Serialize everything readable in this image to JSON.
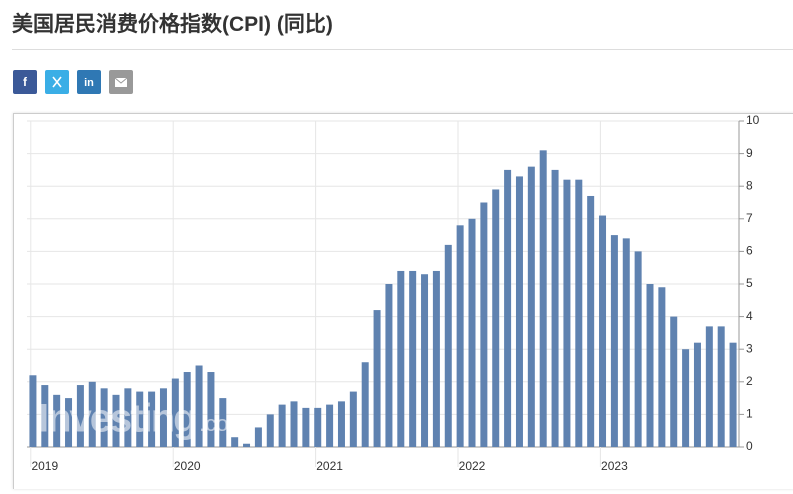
{
  "chart_data": {
    "type": "bar",
    "title": "美国居民消费价格指数(CPI) (同比)",
    "watermark": [
      "Investing",
      ".com"
    ],
    "categories": [
      null,
      "2019",
      null,
      null,
      null,
      null,
      null,
      null,
      null,
      null,
      null,
      null,
      null,
      "2020",
      null,
      null,
      null,
      null,
      null,
      null,
      null,
      null,
      null,
      null,
      null,
      "2021",
      null,
      null,
      null,
      null,
      null,
      null,
      null,
      null,
      null,
      null,
      null,
      "2022",
      null,
      null,
      null,
      null,
      null,
      null,
      null,
      null,
      null,
      null,
      null,
      "2023",
      null,
      null,
      null,
      null,
      null,
      null,
      null,
      null,
      null,
      null
    ],
    "values": [
      2.2,
      1.9,
      1.6,
      1.5,
      1.9,
      2.0,
      1.8,
      1.6,
      1.8,
      1.7,
      1.7,
      1.8,
      2.1,
      2.3,
      2.5,
      2.3,
      1.5,
      0.3,
      0.1,
      0.6,
      1.0,
      1.3,
      1.4,
      1.2,
      1.2,
      1.3,
      1.4,
      1.7,
      2.6,
      4.2,
      5.0,
      5.4,
      5.4,
      5.3,
      5.4,
      6.2,
      6.8,
      7.0,
      7.5,
      7.9,
      8.5,
      8.3,
      8.6,
      9.1,
      8.5,
      8.2,
      8.2,
      7.7,
      7.1,
      6.5,
      6.4,
      6.0,
      5.0,
      4.9,
      4.0,
      3.0,
      3.2,
      3.7,
      3.7,
      3.2
    ],
    "color": "#5f82b0",
    "ylim": [
      0,
      10
    ],
    "yticks": [
      0,
      1,
      2,
      3,
      4,
      5,
      6,
      7,
      8,
      9,
      10
    ],
    "grid": true
  }
}
